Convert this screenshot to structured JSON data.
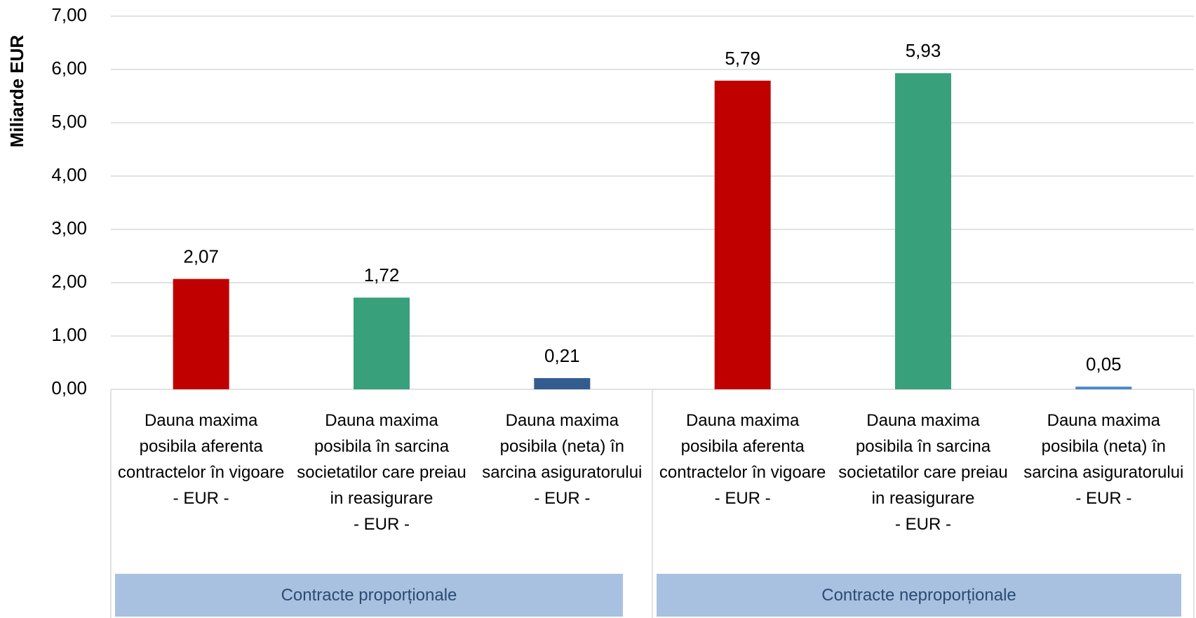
{
  "chart_data": {
    "type": "bar",
    "y_label": "Miliarde EUR",
    "ylim": [
      0,
      7
    ],
    "yticks": [
      {
        "value": 0,
        "label": "0,00"
      },
      {
        "value": 1,
        "label": "1,00"
      },
      {
        "value": 2,
        "label": "2,00"
      },
      {
        "value": 3,
        "label": "3,00"
      },
      {
        "value": 4,
        "label": "4,00"
      },
      {
        "value": 5,
        "label": "5,00"
      },
      {
        "value": 6,
        "label": "6,00"
      },
      {
        "value": 7,
        "label": "7,00"
      }
    ],
    "grid": true,
    "groups": [
      {
        "name": "Contracte proporționale",
        "categories": [
          "Dauna maxima posibila aferenta contractelor în vigoare\n- EUR -",
          "Dauna maxima posibila în sarcina societatilor care preiau in reasigurare\n- EUR -",
          "Dauna maxima posibila (neta) în sarcina asiguratorului\n- EUR -"
        ],
        "values": [
          2.07,
          1.72,
          0.21
        ],
        "value_labels": [
          "2,07",
          "1,72",
          "0,21"
        ],
        "colors": [
          "#c00000",
          "#38a07b",
          "#335c91"
        ]
      },
      {
        "name": "Contracte neproporționale",
        "categories": [
          "Dauna maxima posibila aferenta contractelor în vigoare\n- EUR -",
          "Dauna maxima posibila în sarcina societatilor care preiau in reasigurare\n- EUR -",
          "Dauna maxima posibila (neta) în sarcina asiguratorului\n- EUR -"
        ],
        "values": [
          5.79,
          5.93,
          0.05
        ],
        "value_labels": [
          "5,79",
          "5,93",
          "0,05"
        ],
        "colors": [
          "#c00000",
          "#38a07b",
          "#4a86c8"
        ]
      }
    ]
  }
}
